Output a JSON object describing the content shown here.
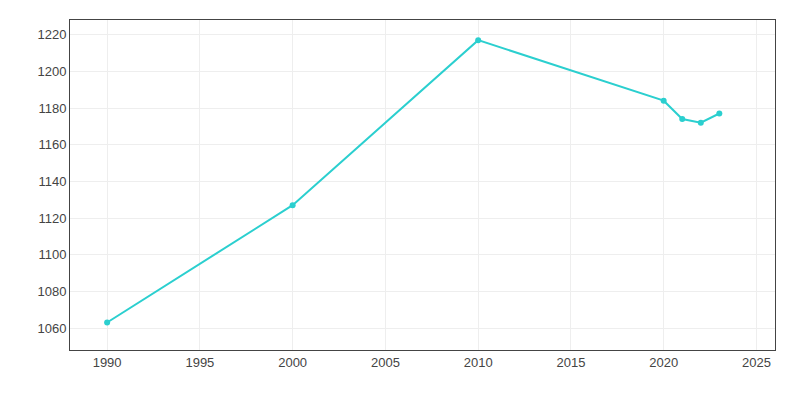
{
  "chart_data": {
    "type": "line",
    "x": [
      1990,
      2000,
      2010,
      2020,
      2021,
      2022,
      2023
    ],
    "values": [
      1063,
      1127,
      1217,
      1184,
      1174,
      1172,
      1177
    ],
    "color": "#2BCFCF",
    "marker": "circle",
    "xlim": [
      1988,
      2026
    ],
    "xticks": [
      1990,
      1995,
      2000,
      2005,
      2010,
      2015,
      2020,
      2025
    ],
    "ylim": [
      1048,
      1228
    ],
    "yticks": [
      1060,
      1080,
      1100,
      1120,
      1140,
      1160,
      1180,
      1200,
      1220
    ],
    "grid": true
  }
}
